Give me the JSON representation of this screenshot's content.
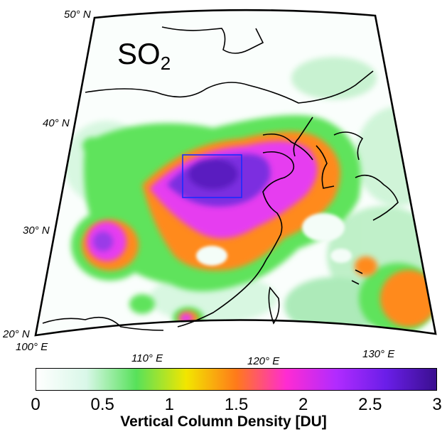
{
  "title": {
    "main": "SO",
    "sub": "2"
  },
  "latitudes": [
    "50° N",
    "40° N",
    "30° N",
    "20° N"
  ],
  "longitudes": [
    "100° E",
    "110° E",
    "120° E",
    "130° E"
  ],
  "colorbar": {
    "label": "Vertical Column Density [DU]",
    "ticks": [
      "0",
      "0.5",
      "1",
      "1.5",
      "2",
      "2.5",
      "3"
    ],
    "min": 0,
    "max": 3,
    "stops": [
      "#ffffff",
      "#d9f7e8",
      "#57e15a",
      "#f2e600",
      "#ff7a1a",
      "#ff2bd2",
      "#b12bff",
      "#6a1ee8",
      "#3a0f8f"
    ]
  },
  "colors": {
    "land_low": "#e7fbf1",
    "green": "#5ee35b",
    "orange": "#ff8a1a",
    "magenta": "#e63ef0",
    "purple": "#7b2fe0",
    "box": "#1a2bff"
  }
}
